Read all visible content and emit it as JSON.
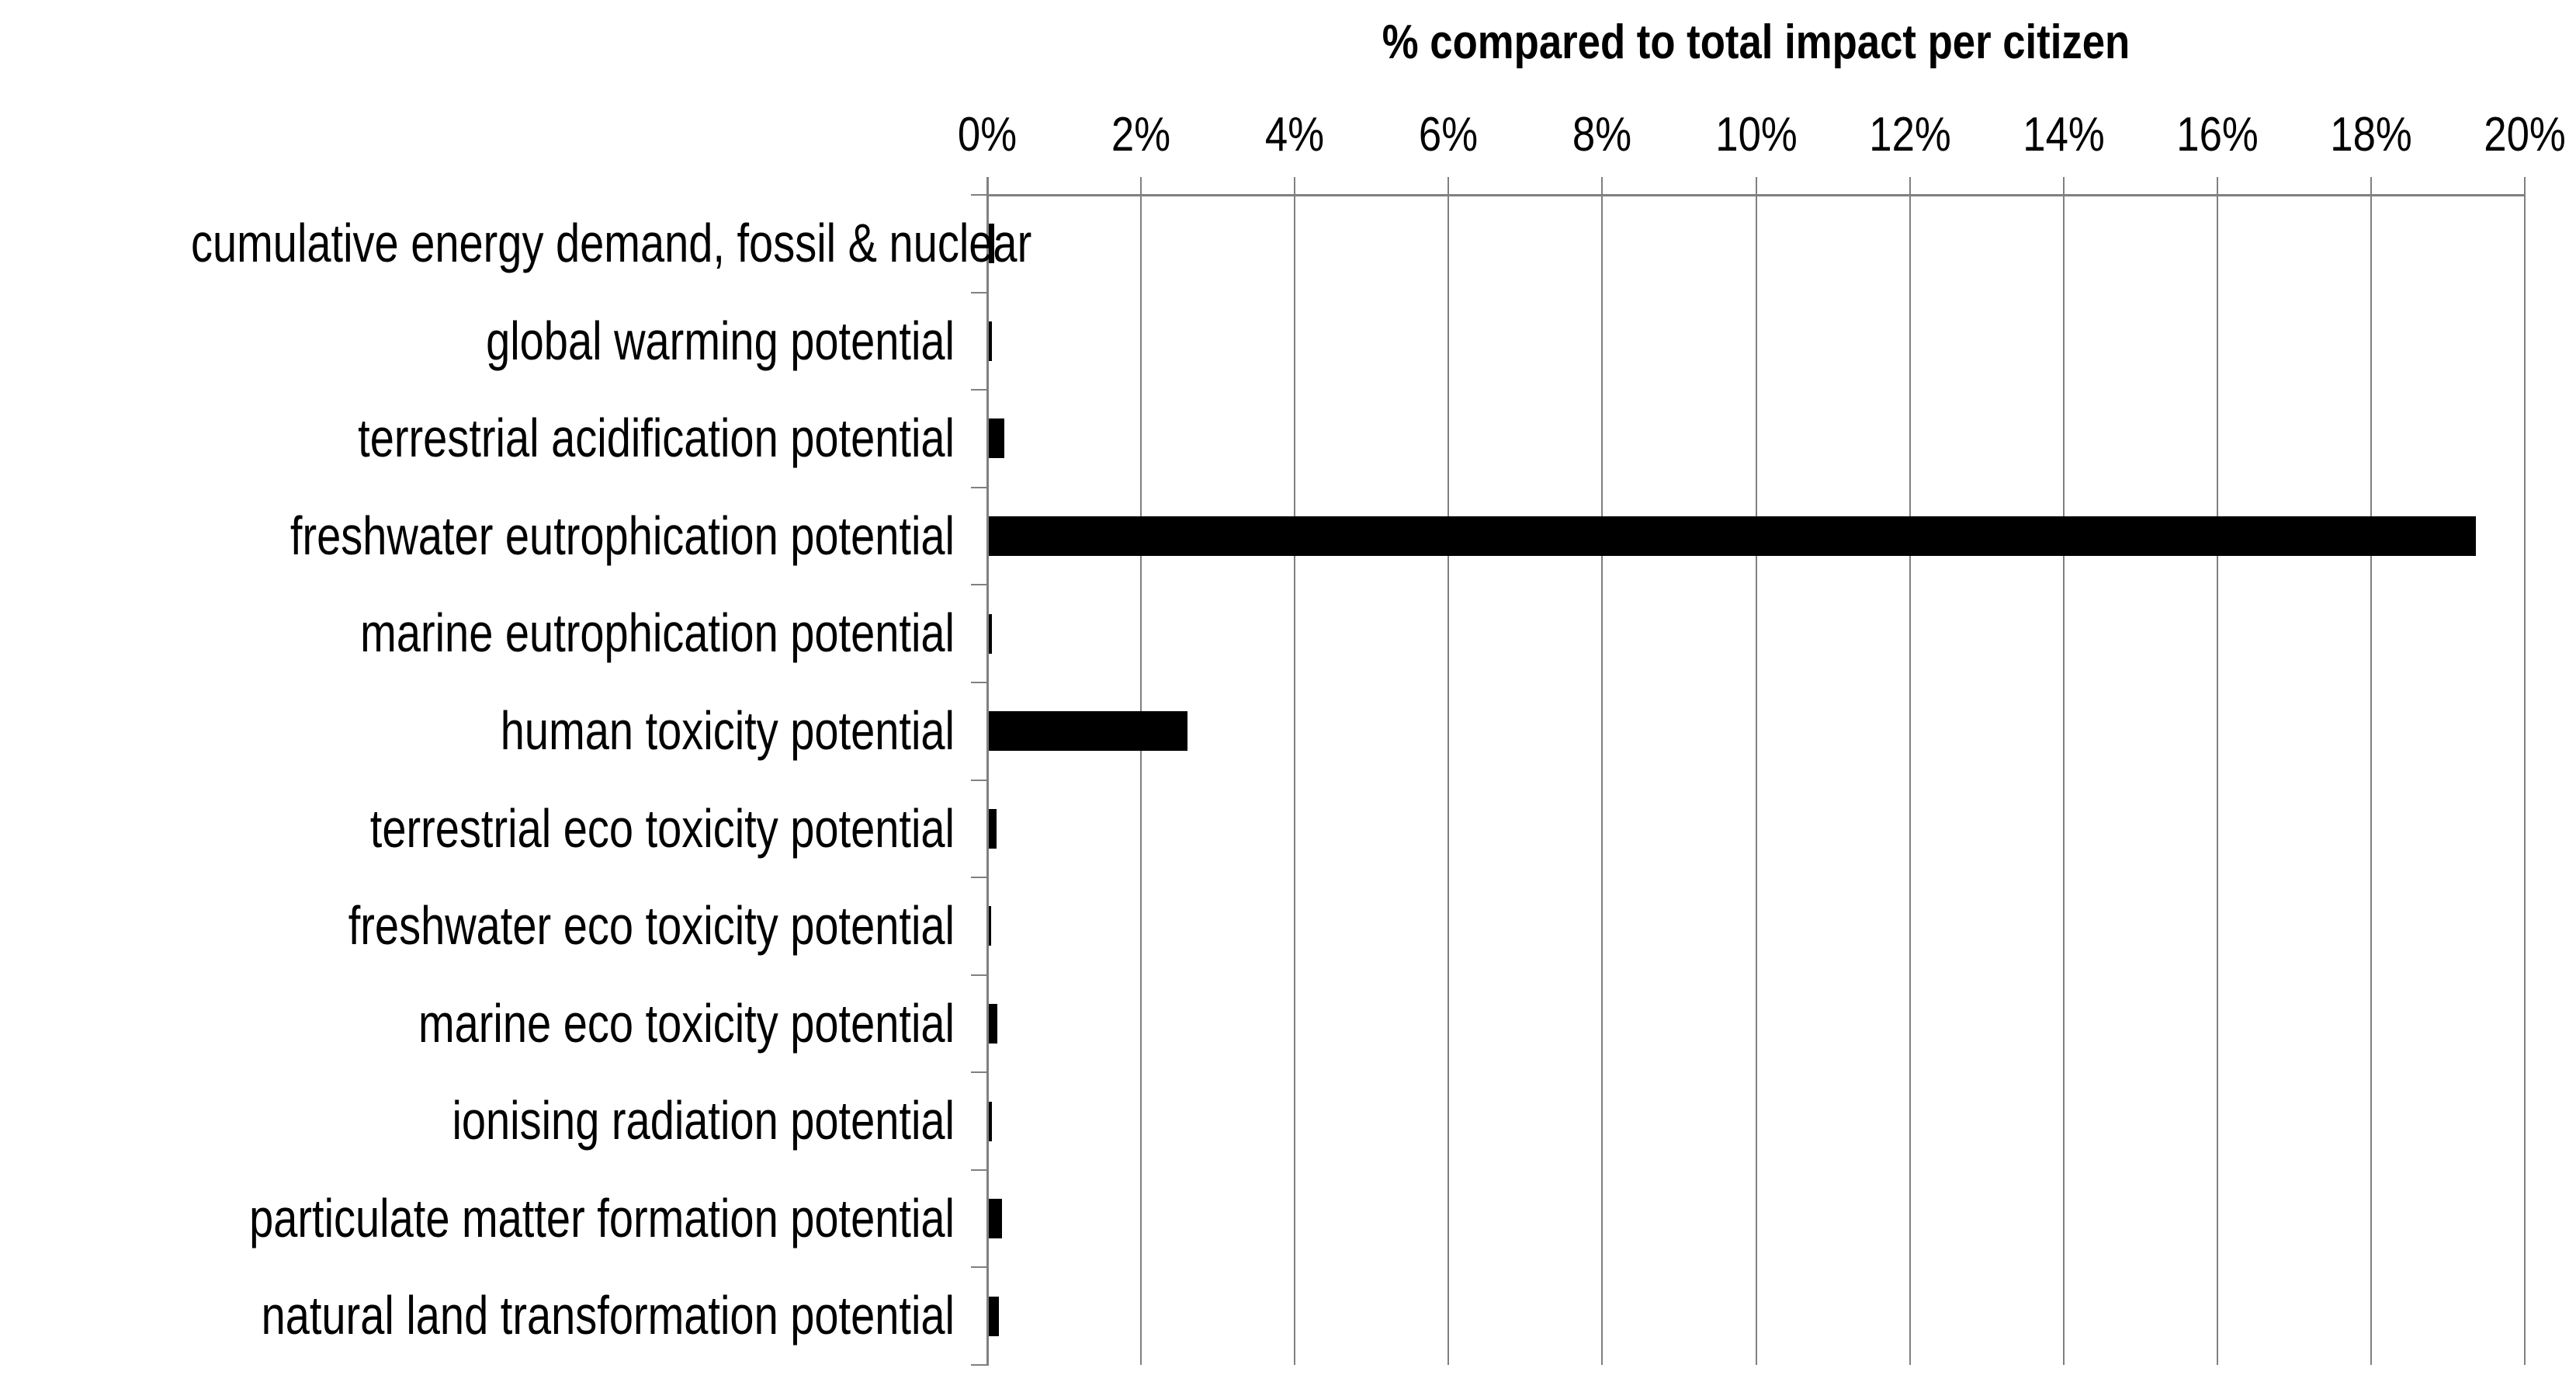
{
  "chart_data": {
    "type": "bar",
    "orientation": "horizontal",
    "title": "% compared to total impact per citizen",
    "categories": [
      "cumulative energy demand, fossil & nuclear",
      "global warming potential",
      "terrestrial acidification potential",
      "freshwater eutrophication potential",
      "marine eutrophication potential",
      "human toxicity potential",
      "terrestrial eco toxicity potential",
      "freshwater eco toxicity potential",
      "marine eco toxicity potential",
      "ionising radiation potential",
      "particulate matter formation potential",
      "natural land transformation potential"
    ],
    "values": [
      0.08,
      0.05,
      0.21,
      19.35,
      0.05,
      2.59,
      0.11,
      0.04,
      0.12,
      0.05,
      0.18,
      0.14
    ],
    "value_unit": "%",
    "xlabel": "",
    "ylabel": "",
    "xlim": [
      0,
      20
    ],
    "x_tick_step": 2,
    "x_tick_labels": [
      "0%",
      "2%",
      "4%",
      "6%",
      "8%",
      "10%",
      "12%",
      "14%",
      "16%",
      "18%",
      "20%"
    ],
    "tick_labels_position": "top",
    "grid": true,
    "legend": false,
    "bar_color": "#000000",
    "axis_color": "#808080",
    "grid_color": "#808080",
    "text_color": "#000000",
    "background_color": "#FFFFFF"
  }
}
